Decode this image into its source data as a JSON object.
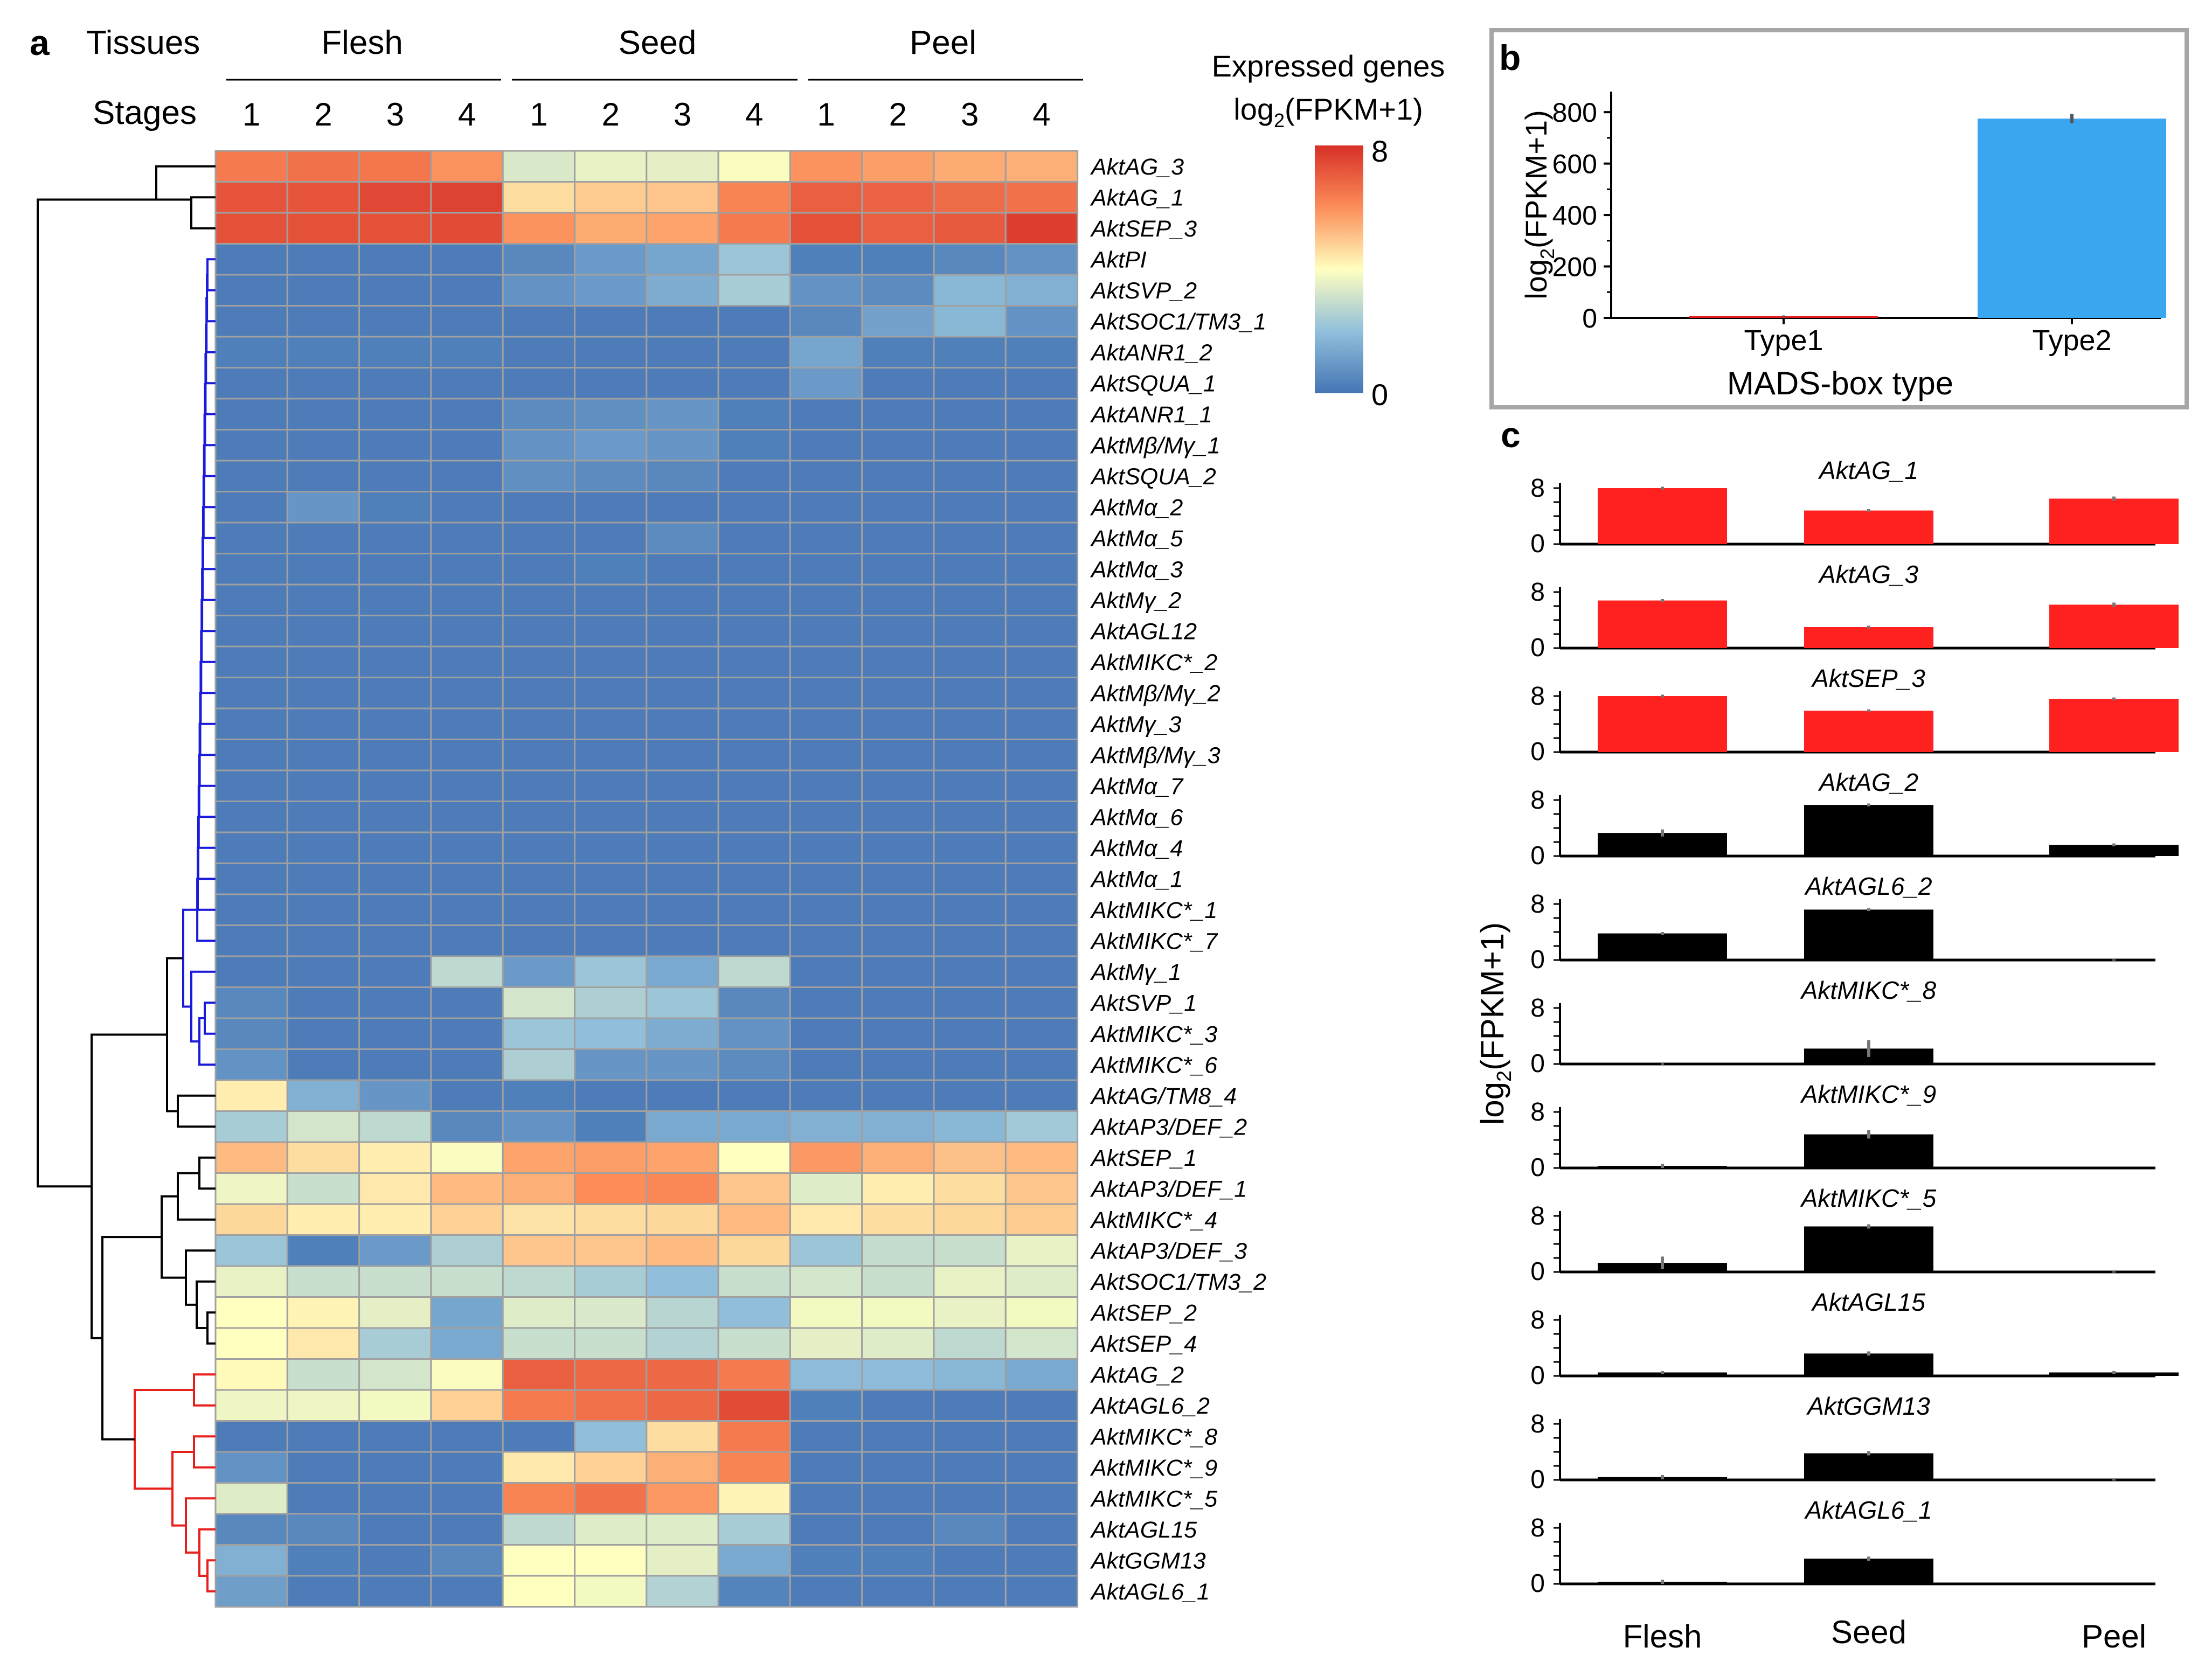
{
  "panel_labels": {
    "a": "a",
    "b": "b",
    "c": "c"
  },
  "colors": {
    "low": "#4575b4",
    "mid": "#ffffbf",
    "high": "#d73027",
    "grid": "#a0a0a0",
    "type1": "#e41a1c",
    "type2": "#3aa6f0",
    "bar_red": "#ff2020",
    "bar_black": "#000000",
    "clade_blue": "#1a1adb",
    "clade_red": "#e8201c",
    "clade_black": "#000000"
  },
  "chart_data": [
    {
      "type": "heatmap",
      "title": "",
      "tissues_label": "Tissues",
      "stages_label": "Stages",
      "tissues": [
        "Flesh",
        "Seed",
        "Peel"
      ],
      "stages": [
        "1",
        "2",
        "3",
        "4",
        "1",
        "2",
        "3",
        "4",
        "1",
        "2",
        "3",
        "4"
      ],
      "colorbar": {
        "title_line1": "Expressed genes",
        "title_line2": "log",
        "title_sub": "2",
        "title_rest": "(FPKM+1)",
        "max_label": "8",
        "min_label": "0",
        "range": [
          0,
          8
        ]
      },
      "genes": [
        "AktAG_3",
        "AktAG_1",
        "AktSEP_3",
        "AktPI",
        "AktSVP_2",
        "AktSOC1/TM3_1",
        "AktANR1_2",
        "AktSQUA_1",
        "AktANR1_1",
        "AktMβ/Mγ_1",
        "AktSQUA_2",
        "AktMα_2",
        "AktMα_5",
        "AktMα_3",
        "AktMγ_2",
        "AktAGL12",
        "AktMIKC*_2",
        "AktMβ/Mγ_2",
        "AktMγ_3",
        "AktMβ/Mγ_3",
        "AktMα_7",
        "AktMα_6",
        "AktMα_4",
        "AktMα_1",
        "AktMIKC*_1",
        "AktMIKC*_7",
        "AktMγ_1",
        "AktSVP_1",
        "AktMIKC*_3",
        "AktMIKC*_6",
        "AktAG/TM8_4",
        "AktAP3/DEF_2",
        "AktSEP_1",
        "AktAP3/DEF_1",
        "AktMIKC*_4",
        "AktAP3/DEF_3",
        "AktSOC1/TM3_2",
        "AktSEP_2",
        "AktSEP_4",
        "AktAG_2",
        "AktAGL6_2",
        "AktMIKC*_8",
        "AktMIKC*_9",
        "AktMIKC*_5",
        "AktAGL15",
        "AktGGM13",
        "AktAGL6_1"
      ],
      "values": [
        [
          6.4,
          6.6,
          6.5,
          5.9,
          3.3,
          3.6,
          3.5,
          3.9,
          5.9,
          5.7,
          5.5,
          5.4
        ],
        [
          7.2,
          7.2,
          7.5,
          7.6,
          4.6,
          4.9,
          5.0,
          6.2,
          7.0,
          6.9,
          6.7,
          6.6
        ],
        [
          7.3,
          7.3,
          7.3,
          7.4,
          5.9,
          5.5,
          5.6,
          6.4,
          7.3,
          7.0,
          7.1,
          7.7
        ],
        [
          0.2,
          0.2,
          0.2,
          0.2,
          0.5,
          1.0,
          1.3,
          2.2,
          0.3,
          0.3,
          0.5,
          0.8
        ],
        [
          0.2,
          0.2,
          0.2,
          0.2,
          0.8,
          1.0,
          1.5,
          2.4,
          0.8,
          0.6,
          1.8,
          1.6
        ],
        [
          0.2,
          0.2,
          0.2,
          0.2,
          0.2,
          0.2,
          0.2,
          0.2,
          0.5,
          1.2,
          1.8,
          0.8
        ],
        [
          0.3,
          0.3,
          0.3,
          0.3,
          0.2,
          0.2,
          0.2,
          0.2,
          1.3,
          0.3,
          0.3,
          0.3
        ],
        [
          0.2,
          0.2,
          0.2,
          0.2,
          0.2,
          0.2,
          0.2,
          0.2,
          1.0,
          0.2,
          0.2,
          0.2
        ],
        [
          0.2,
          0.2,
          0.2,
          0.2,
          0.6,
          0.7,
          0.9,
          0.3,
          0.2,
          0.2,
          0.2,
          0.2
        ],
        [
          0.2,
          0.2,
          0.2,
          0.2,
          0.8,
          1.0,
          0.9,
          0.3,
          0.2,
          0.2,
          0.2,
          0.2
        ],
        [
          0.2,
          0.2,
          0.2,
          0.2,
          0.7,
          0.6,
          0.5,
          0.2,
          0.2,
          0.2,
          0.2,
          0.2
        ],
        [
          0.2,
          0.9,
          0.3,
          0.2,
          0.2,
          0.2,
          0.2,
          0.2,
          0.2,
          0.2,
          0.2,
          0.2
        ],
        [
          0.2,
          0.2,
          0.2,
          0.2,
          0.2,
          0.2,
          0.6,
          0.2,
          0.2,
          0.2,
          0.2,
          0.2
        ],
        [
          0.2,
          0.2,
          0.2,
          0.2,
          0.2,
          0.3,
          0.2,
          0.2,
          0.2,
          0.2,
          0.2,
          0.2
        ],
        [
          0.2,
          0.2,
          0.2,
          0.2,
          0.2,
          0.2,
          0.2,
          0.2,
          0.2,
          0.2,
          0.2,
          0.2
        ],
        [
          0.2,
          0.2,
          0.2,
          0.2,
          0.2,
          0.2,
          0.2,
          0.2,
          0.2,
          0.2,
          0.2,
          0.2
        ],
        [
          0.2,
          0.2,
          0.2,
          0.2,
          0.2,
          0.2,
          0.2,
          0.2,
          0.2,
          0.2,
          0.2,
          0.2
        ],
        [
          0.2,
          0.2,
          0.2,
          0.2,
          0.2,
          0.2,
          0.2,
          0.2,
          0.2,
          0.2,
          0.2,
          0.2
        ],
        [
          0.2,
          0.2,
          0.2,
          0.2,
          0.2,
          0.2,
          0.2,
          0.2,
          0.2,
          0.2,
          0.2,
          0.2
        ],
        [
          0.2,
          0.2,
          0.2,
          0.2,
          0.2,
          0.2,
          0.2,
          0.2,
          0.2,
          0.2,
          0.2,
          0.2
        ],
        [
          0.2,
          0.2,
          0.2,
          0.2,
          0.2,
          0.2,
          0.2,
          0.2,
          0.2,
          0.2,
          0.2,
          0.2
        ],
        [
          0.2,
          0.2,
          0.2,
          0.2,
          0.2,
          0.2,
          0.2,
          0.2,
          0.2,
          0.2,
          0.2,
          0.2
        ],
        [
          0.2,
          0.2,
          0.2,
          0.2,
          0.2,
          0.2,
          0.2,
          0.2,
          0.2,
          0.2,
          0.2,
          0.2
        ],
        [
          0.2,
          0.2,
          0.2,
          0.2,
          0.2,
          0.2,
          0.2,
          0.2,
          0.2,
          0.2,
          0.2,
          0.2
        ],
        [
          0.2,
          0.2,
          0.2,
          0.2,
          0.2,
          0.2,
          0.2,
          0.2,
          0.2,
          0.2,
          0.2,
          0.2
        ],
        [
          0.2,
          0.2,
          0.2,
          0.2,
          0.2,
          0.2,
          0.2,
          0.2,
          0.2,
          0.2,
          0.2,
          0.2
        ],
        [
          0.2,
          0.2,
          0.2,
          2.8,
          1.0,
          2.2,
          1.4,
          2.8,
          0.2,
          0.2,
          0.2,
          0.2
        ],
        [
          0.5,
          0.2,
          0.2,
          0.2,
          3.2,
          2.5,
          2.2,
          0.5,
          0.2,
          0.2,
          0.2,
          0.2
        ],
        [
          0.5,
          0.2,
          0.2,
          0.2,
          2.2,
          2.0,
          1.5,
          0.8,
          0.2,
          0.2,
          0.2,
          0.2
        ],
        [
          0.8,
          0.2,
          0.2,
          0.2,
          2.5,
          0.9,
          0.9,
          0.6,
          0.2,
          0.2,
          0.2,
          0.2
        ],
        [
          4.3,
          1.6,
          0.9,
          0.2,
          0.3,
          0.2,
          0.2,
          0.2,
          0.2,
          0.2,
          0.2,
          0.2
        ],
        [
          2.4,
          3.2,
          2.8,
          0.5,
          0.8,
          0.3,
          1.4,
          1.4,
          1.6,
          1.6,
          1.8,
          2.3
        ],
        [
          5.2,
          4.6,
          4.3,
          3.9,
          5.6,
          5.7,
          5.6,
          4.0,
          5.8,
          5.4,
          5.1,
          5.2
        ],
        [
          3.7,
          3.0,
          4.4,
          5.2,
          5.4,
          6.0,
          6.1,
          5.0,
          3.4,
          4.3,
          4.6,
          5.0
        ],
        [
          4.7,
          4.3,
          4.3,
          4.8,
          4.5,
          4.6,
          4.7,
          5.2,
          4.4,
          4.6,
          4.7,
          4.9
        ],
        [
          2.2,
          0.3,
          1.0,
          2.5,
          5.0,
          5.0,
          5.2,
          4.7,
          2.2,
          2.9,
          3.0,
          3.6
        ],
        [
          3.6,
          3.0,
          3.0,
          3.0,
          2.8,
          2.4,
          2.0,
          3.0,
          3.2,
          3.0,
          3.6,
          3.4
        ],
        [
          4.0,
          4.2,
          3.5,
          1.3,
          3.4,
          3.3,
          2.7,
          2.0,
          3.8,
          3.8,
          3.6,
          3.8
        ],
        [
          4.0,
          4.4,
          2.4,
          1.4,
          3.0,
          3.0,
          2.6,
          3.0,
          3.5,
          3.4,
          2.8,
          3.2
        ],
        [
          4.1,
          3.0,
          3.2,
          3.9,
          7.0,
          6.8,
          6.8,
          6.4,
          1.9,
          1.9,
          1.8,
          1.4
        ],
        [
          3.7,
          3.7,
          3.8,
          4.8,
          6.4,
          6.6,
          6.8,
          7.4,
          0.3,
          0.2,
          0.2,
          0.2
        ],
        [
          0.2,
          0.2,
          0.2,
          0.2,
          0.2,
          2.0,
          4.6,
          6.4,
          0.2,
          0.2,
          0.2,
          0.2
        ],
        [
          0.8,
          0.2,
          0.2,
          0.2,
          4.4,
          4.8,
          5.4,
          6.2,
          0.2,
          0.2,
          0.2,
          0.2
        ],
        [
          3.4,
          0.2,
          0.2,
          0.2,
          6.2,
          6.6,
          5.8,
          4.2,
          0.2,
          0.2,
          0.2,
          0.2
        ],
        [
          0.5,
          0.5,
          0.2,
          0.2,
          2.8,
          3.4,
          3.4,
          2.4,
          0.2,
          0.2,
          0.5,
          0.2
        ],
        [
          1.6,
          0.3,
          0.2,
          0.5,
          4.0,
          4.0,
          3.5,
          1.4,
          0.3,
          0.3,
          0.2,
          0.2
        ],
        [
          1.1,
          0.2,
          0.2,
          0.2,
          4.0,
          3.8,
          2.6,
          0.4,
          0.2,
          0.2,
          0.2,
          0.2
        ]
      ]
    },
    {
      "type": "bar",
      "title": "",
      "categories": [
        "Type1",
        "Type2"
      ],
      "values": [
        5,
        775
      ],
      "errors": [
        3,
        18
      ],
      "xlabel": "MADS-box type",
      "ylabel_main": "log",
      "ylabel_sub": "2",
      "ylabel_rest": "(FPKM+1)",
      "yticks": [
        "0",
        "200",
        "400",
        "600",
        "800"
      ],
      "ylim": [
        0,
        880
      ]
    },
    {
      "type": "bar",
      "title": "",
      "categories": [
        "Flesh",
        "Seed",
        "Peel"
      ],
      "ylabel_main": "log",
      "ylabel_sub": "2",
      "ylabel_rest": "(FPKM+1)",
      "ytick_zero": "0",
      "ytick_eight": "8",
      "ylim": [
        0,
        9
      ],
      "series": [
        {
          "name": "AktAG_1",
          "color": "red",
          "values": [
            8.0,
            4.8,
            6.5
          ],
          "errors": [
            0.2,
            0.2,
            0.3
          ]
        },
        {
          "name": "AktAG_3",
          "color": "red",
          "values": [
            6.8,
            3.0,
            6.2
          ],
          "errors": [
            0.2,
            0.2,
            0.3
          ]
        },
        {
          "name": "AktSEP_3",
          "color": "red",
          "values": [
            8.0,
            5.9,
            7.6
          ],
          "errors": [
            0.2,
            0.2,
            0.2
          ]
        },
        {
          "name": "AktAG_2",
          "color": "black",
          "values": [
            3.3,
            7.3,
            1.6
          ],
          "errors": [
            0.5,
            0.2,
            0.2
          ]
        },
        {
          "name": "AktAGL6_2",
          "color": "black",
          "values": [
            3.8,
            7.2,
            0.0
          ],
          "errors": [
            0.2,
            0.2,
            0.1
          ]
        },
        {
          "name": "AktMIKC*_8",
          "color": "black",
          "values": [
            0.0,
            2.2,
            0.0
          ],
          "errors": [
            0.1,
            1.2,
            0.0
          ]
        },
        {
          "name": "AktMIKC*_9",
          "color": "black",
          "values": [
            0.3,
            4.8,
            0.0
          ],
          "errors": [
            0.3,
            0.6,
            0.0
          ]
        },
        {
          "name": "AktMIKC*_5",
          "color": "black",
          "values": [
            1.3,
            6.5,
            0.0
          ],
          "errors": [
            0.9,
            0.3,
            0.1
          ]
        },
        {
          "name": "AktAGL15",
          "color": "black",
          "values": [
            0.5,
            3.2,
            0.5
          ],
          "errors": [
            0.2,
            0.3,
            0.2
          ]
        },
        {
          "name": "AktGGM13",
          "color": "black",
          "values": [
            0.4,
            3.8,
            0.0
          ],
          "errors": [
            0.3,
            0.3,
            0.1
          ]
        },
        {
          "name": "AktAGL6_1",
          "color": "black",
          "values": [
            0.3,
            3.6,
            0.0
          ],
          "errors": [
            0.3,
            0.3,
            0.0
          ]
        }
      ]
    }
  ]
}
